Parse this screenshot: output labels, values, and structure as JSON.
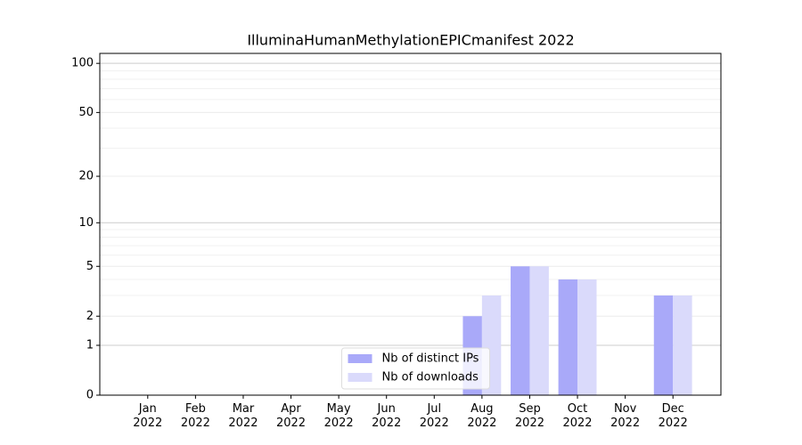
{
  "chart_data": {
    "type": "bar",
    "title": "IlluminaHumanMethylationEPICmanifest 2022",
    "categories": [
      "Jan 2022",
      "Feb 2022",
      "Mar 2022",
      "Apr 2022",
      "May 2022",
      "Jun 2022",
      "Jul 2022",
      "Aug 2022",
      "Sep 2022",
      "Oct 2022",
      "Nov 2022",
      "Dec 2022"
    ],
    "series": [
      {
        "name": "Nb of distinct IPs",
        "color": "#a9a9f9",
        "values": [
          0,
          0,
          0,
          0,
          0,
          0,
          0,
          2,
          5,
          4,
          0,
          3
        ]
      },
      {
        "name": "Nb of downloads",
        "color": "#dadafb",
        "values": [
          0,
          0,
          0,
          0,
          0,
          0,
          0,
          3,
          5,
          4,
          0,
          3
        ]
      }
    ],
    "yscale": "log1p",
    "ylim": [
      0,
      115
    ],
    "yticks": [
      0,
      1,
      2,
      5,
      10,
      20,
      50,
      100
    ],
    "yminorticks": [
      3,
      4,
      6,
      7,
      8,
      9,
      30,
      40,
      60,
      70,
      80,
      90
    ],
    "grid": true,
    "legend": "lower center"
  }
}
